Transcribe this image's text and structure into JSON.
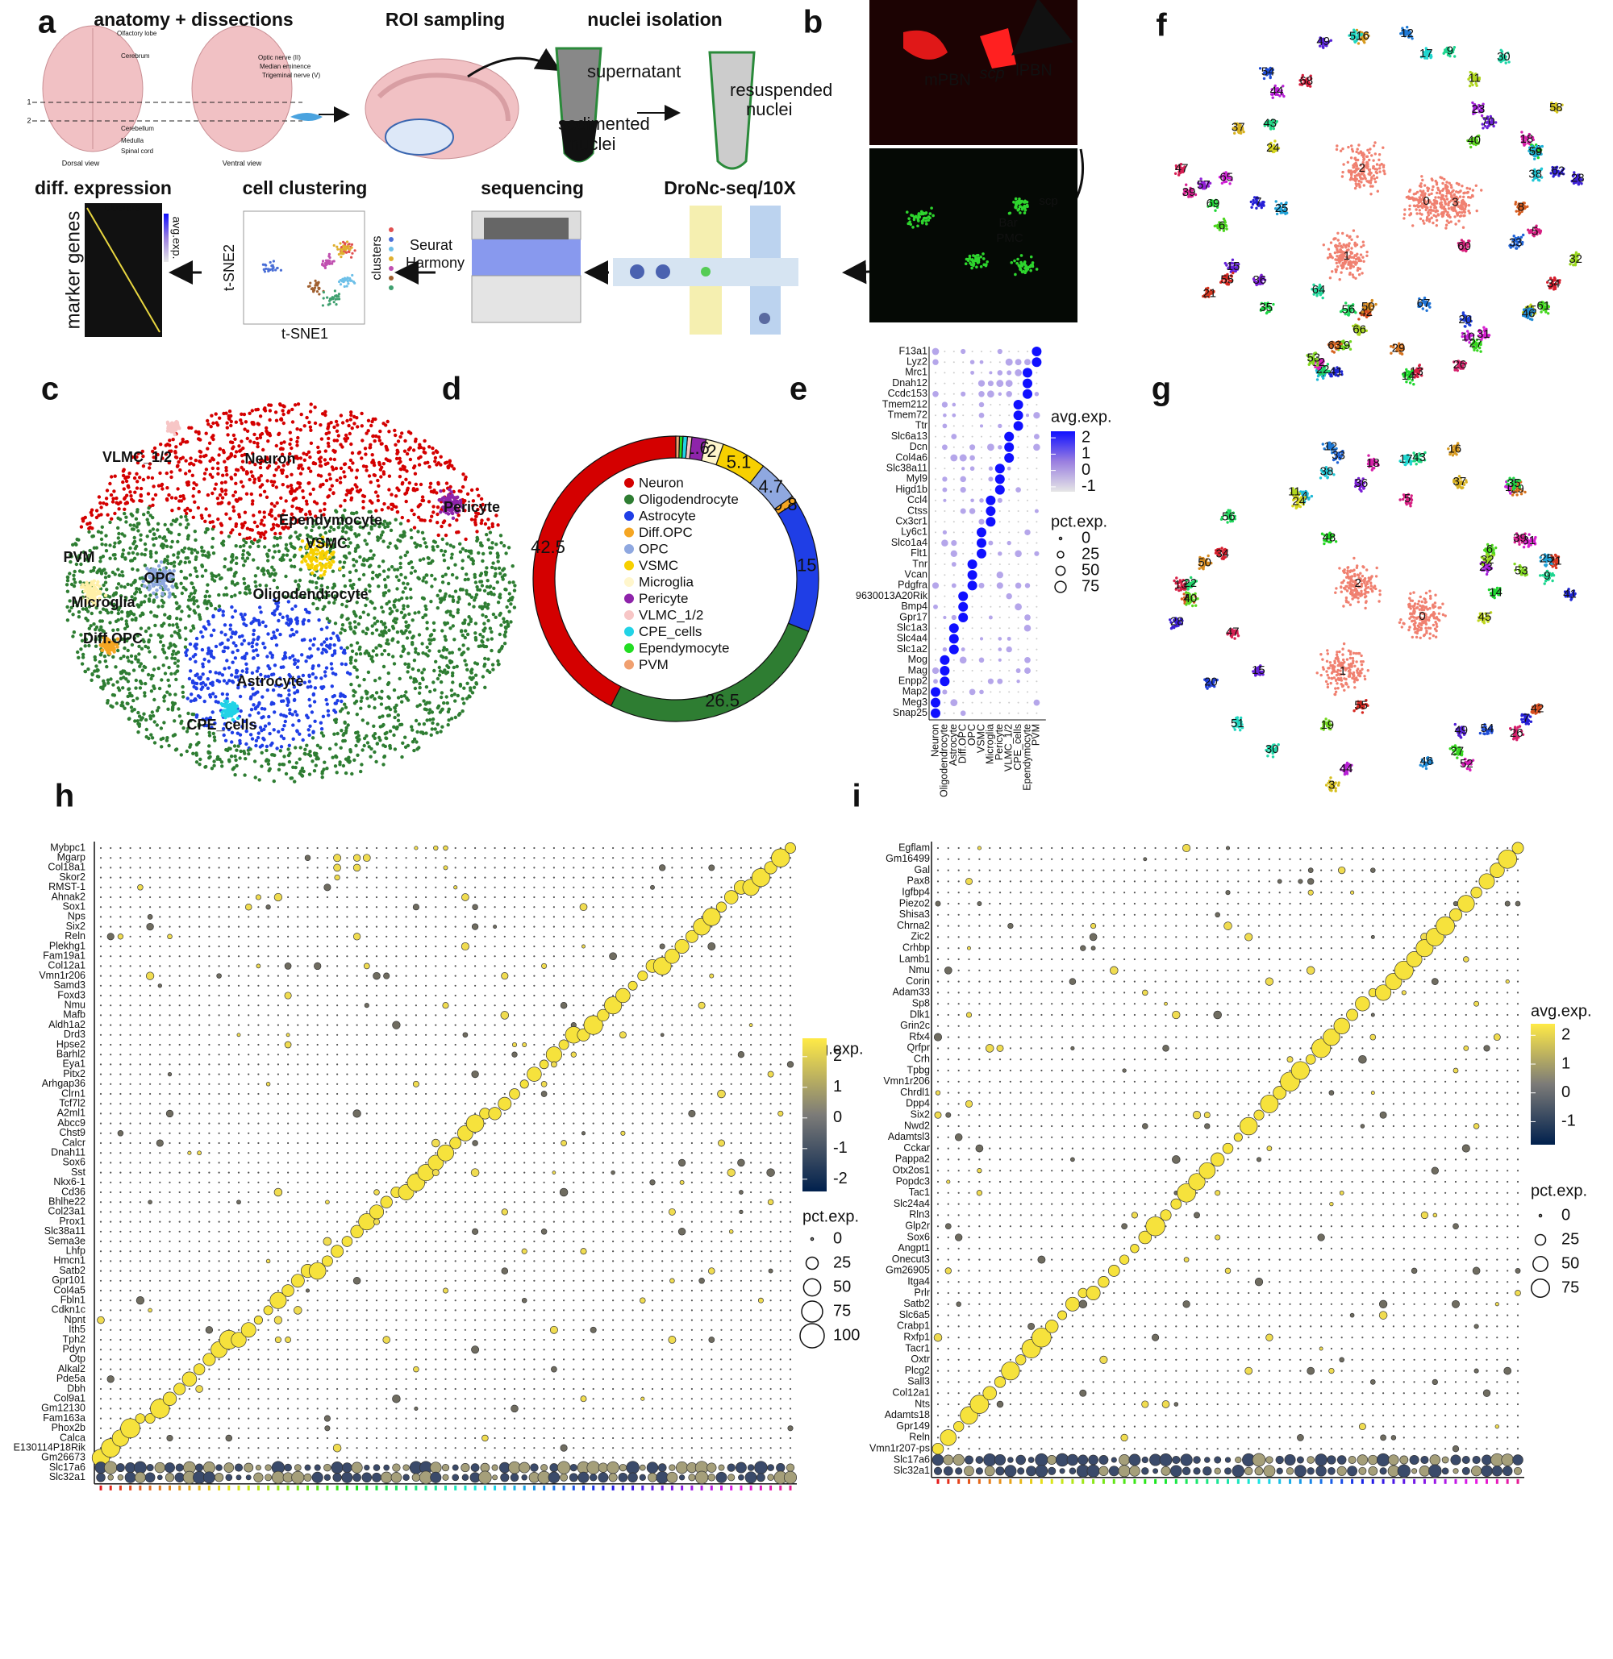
{
  "panel_letters": [
    "a",
    "b",
    "c",
    "d",
    "e",
    "f",
    "g",
    "h",
    "i"
  ],
  "panel_a": {
    "anatomy_title": "anatomy + dissections",
    "roi_title": "ROI sampling",
    "nuclei_title": "nuclei isolation",
    "supernatant": "supernatant",
    "sedimented": [
      "sedimented",
      "nuclei"
    ],
    "resuspended": [
      "resuspended",
      "nuclei"
    ],
    "brain_labels": [
      "Olfactory lobe",
      "Cerebrum",
      "Cerebellum",
      "Medulla",
      "Spinal cord",
      "Optic nerve (II)",
      "Median eminence",
      "Trigeminal nerve (V)",
      "Dorsal view",
      "Ventral view",
      "1",
      "2"
    ],
    "diff_title": "diff. expression",
    "clusters_top": "clusters",
    "avg_exp": "avg.exp.",
    "marker_genes": "marker genes",
    "clustering_title": "cell clustering",
    "tsne2": "t-SNE2",
    "tsne1": "t-SNE1",
    "clusters_side": "clusters",
    "seurat": "Seurat",
    "harmony": "Harmony",
    "sequencing_title": "sequencing",
    "dronc_title": "DroNc-seq/10X"
  },
  "panel_b": {
    "top_labels": [
      "mPBN",
      "scp",
      "lPBN"
    ],
    "bottom_labels": [
      "scp",
      "Bar",
      "PMC"
    ]
  },
  "panel_c": {
    "labels": [
      "VLMC_1/2",
      "Neuron",
      "Pericyte",
      "Ependymocyte",
      "VSMC",
      "PVM",
      "OPC",
      "Microglia",
      "Oligodendrocyte",
      "Diff.OPC",
      "Astrocyte",
      "CPE_cells"
    ]
  },
  "chart_data": {
    "type": "donut",
    "categories": [
      "Neuron",
      "Oligodendrocyte",
      "Astrocyte",
      "Diff.OPC",
      "OPC",
      "VSMC",
      "Microglia",
      "Pericyte",
      "VLMC_1/2",
      "CPE_cells",
      "Ependymocyte",
      "PVM"
    ],
    "values": [
      42.5,
      26.5,
      15,
      0.8,
      4.7,
      5.1,
      2,
      1.6,
      0.5,
      0.5,
      0.4,
      0.4
    ],
    "value_labels": [
      "42.5",
      "26.5",
      "15",
      "0.8",
      "4.7",
      "5.1",
      "2",
      "1.6",
      null,
      null,
      null,
      null
    ],
    "colors": [
      "#d40000",
      "#2e7d32",
      "#1f3ee6",
      "#f5a623",
      "#8fa8e0",
      "#f7d000",
      "#fff6cc",
      "#8e24aa",
      "#f7c6c6",
      "#22d3e6",
      "#22dd22",
      "#f0a070"
    ]
  },
  "panel_e": {
    "genes": [
      "F13a1",
      "Lyz2",
      "Mrc1",
      "Dnah12",
      "Ccdc153",
      "Tmem212",
      "Tmem72",
      "Ttr",
      "Slc6a13",
      "Dcn",
      "Col4a6",
      "Slc38a11",
      "Myl9",
      "Higd1b",
      "Ccl4",
      "Ctss",
      "Cx3cr1",
      "Ly6c1",
      "Slco1a4",
      "Flt1",
      "Tnr",
      "Vcan",
      "Pdgfra",
      "9630013A20Rik",
      "Bmp4",
      "Gpr17",
      "Slc1a3",
      "Slc4a4",
      "Slc1a2",
      "Mog",
      "Mag",
      "Enpp2",
      "Map2",
      "Meg3",
      "Snap25"
    ],
    "cell_types": [
      "Neuron",
      "Oligodendrocyte",
      "Astrocyte",
      "Diff.OPC",
      "OPC",
      "VSMC",
      "Microglia",
      "Pericyte",
      "VLMC_1/2",
      "CPE_cells",
      "Ependymocyte",
      "PVM"
    ],
    "legend": {
      "color_title": "avg.exp.",
      "color_lim": [
        -1.3,
        2.4
      ],
      "color_ticks": [
        2,
        1,
        0,
        -1
      ],
      "size_title": "pct.exp.",
      "size_ticks": [
        0,
        25,
        50,
        75
      ]
    }
  },
  "panel_f": {
    "clusters": [
      0,
      1,
      2,
      3,
      4,
      5,
      6,
      7,
      8,
      9,
      10,
      11,
      12,
      13,
      14,
      15,
      16,
      17,
      18,
      19,
      20,
      21,
      22,
      23,
      24,
      25,
      26,
      27,
      28,
      29,
      30,
      31,
      32,
      33,
      34,
      35,
      36,
      37,
      38,
      39,
      40,
      41,
      42,
      43,
      44,
      45,
      46,
      47,
      48,
      49,
      50,
      51,
      52,
      53,
      54,
      55,
      56,
      57,
      58,
      59,
      60,
      61,
      62,
      63,
      64,
      65,
      66,
      67,
      68,
      69,
      70
    ]
  },
  "panel_g": {
    "clusters": [
      0,
      1,
      2,
      3,
      4,
      5,
      6,
      7,
      8,
      9,
      10,
      11,
      12,
      13,
      14,
      15,
      16,
      17,
      18,
      19,
      20,
      21,
      22,
      23,
      24,
      25,
      26,
      27,
      28,
      29,
      30,
      31,
      32,
      33,
      34,
      35,
      36,
      37,
      38,
      39,
      40,
      41,
      42,
      43,
      44,
      45,
      46,
      47,
      48,
      49,
      50,
      51,
      52,
      53,
      54,
      55,
      56
    ]
  },
  "panel_h": {
    "genes": [
      "Mybpc1",
      "Mgarp",
      "Col18a1",
      "Skor2",
      "RMST-1",
      "Ahnak2",
      "Sox1",
      "Nps",
      "Six2",
      "Reln",
      "Plekhg1",
      "Fam19a1",
      "Col12a1",
      "Vmn1r206",
      "Samd3",
      "Foxd3",
      "Nmu",
      "Mafb",
      "Aldh1a2",
      "Drd3",
      "Hpse2",
      "Barhl2",
      "Eya1",
      "Pitx2",
      "Arhgap36",
      "Clrn1",
      "Tcf7l2",
      "A2ml1",
      "Abcc9",
      "Chst9",
      "Calcr",
      "Dnah11",
      "Sox6",
      "Sst",
      "Nkx6-1",
      "Cd36",
      "Bhlhe22",
      "Col23a1",
      "Prox1",
      "Slc38a11",
      "Sema3e",
      "Lhfp",
      "Hmcn1",
      "Satb2",
      "Gpr101",
      "Col4a5",
      "Fbln1",
      "Cdkn1c",
      "Npnt",
      "Ith5",
      "Tph2",
      "Pdyn",
      "Otp",
      "Alkal2",
      "Pde5a",
      "Dbh",
      "Col9a1",
      "Gm12130",
      "Fam163a",
      "Phox2b",
      "Calca",
      "E130114P18Rik",
      "Gm26673",
      "Slc17a6",
      "Slc32a1"
    ],
    "legend": {
      "color_title": "avg.exp.",
      "color_lim": [
        -2.4,
        2.6
      ],
      "color_ticks": [
        2,
        1,
        0,
        -1,
        -2
      ],
      "size_title": "pct.exp.",
      "size_ticks": [
        0,
        25,
        50,
        75,
        100
      ]
    }
  },
  "panel_i": {
    "genes": [
      "Egflam",
      "Gm16499",
      "Gal",
      "Pax8",
      "Igfbp4",
      "Piezo2",
      "Shisa3",
      "Chrna2",
      "Zic2",
      "Crhbp",
      "Lamb1",
      "Nmu",
      "Corin",
      "Adam33",
      "Sp8",
      "Dlk1",
      "Grin2c",
      "Rfx4",
      "Qrfpr",
      "Crh",
      "Tpbg",
      "Vmn1r206",
      "Chrdl1",
      "Dpp4",
      "Six2",
      "Nwd2",
      "Adamtsl3",
      "Cckar",
      "Pappa2",
      "Otx2os1",
      "Popdc3",
      "Tac1",
      "Slc24a4",
      "Rln3",
      "Glp2r",
      "Sox6",
      "Angpt1",
      "Onecut3",
      "Gm26905",
      "Itga4",
      "Prlr",
      "Satb2",
      "Slc6a5",
      "Crabp1",
      "Rxfp1",
      "Tacr1",
      "Oxtr",
      "Plcg2",
      "Sall3",
      "Col12a1",
      "Nts",
      "Adamts18",
      "Gpr149",
      "Reln",
      "Vmn1r207-ps",
      "Slc17a6",
      "Slc32a1"
    ],
    "legend": {
      "color_title": "avg.exp.",
      "color_lim": [
        -1.8,
        2.4
      ],
      "color_ticks": [
        2,
        1,
        0,
        -1
      ],
      "size_title": "pct.exp.",
      "size_ticks": [
        0,
        25,
        50,
        75
      ]
    }
  }
}
